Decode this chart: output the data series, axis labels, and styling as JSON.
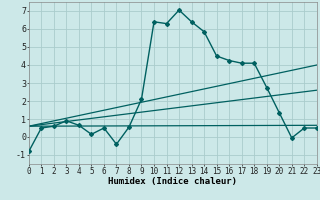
{
  "title": "",
  "xlabel": "Humidex (Indice chaleur)",
  "ylabel": "",
  "background_color": "#cce8e8",
  "grid_color": "#aacccc",
  "line_color": "#006060",
  "xlim": [
    0,
    23
  ],
  "ylim": [
    -1.5,
    7.5
  ],
  "xticks": [
    0,
    1,
    2,
    3,
    4,
    5,
    6,
    7,
    8,
    9,
    10,
    11,
    12,
    13,
    14,
    15,
    16,
    17,
    18,
    19,
    20,
    21,
    22,
    23
  ],
  "yticks": [
    -1,
    0,
    1,
    2,
    3,
    4,
    5,
    6,
    7
  ],
  "curve1_x": [
    0,
    1,
    2,
    3,
    4,
    5,
    6,
    7,
    8,
    9,
    10,
    11,
    12,
    13,
    14,
    15,
    16,
    17,
    18,
    19,
    20,
    21,
    22,
    23
  ],
  "curve1_y": [
    -0.8,
    0.5,
    0.6,
    0.9,
    0.65,
    0.15,
    0.5,
    -0.4,
    0.55,
    2.1,
    6.4,
    6.3,
    7.05,
    6.4,
    5.85,
    4.5,
    4.25,
    4.1,
    4.1,
    2.75,
    1.35,
    -0.05,
    0.5,
    0.5
  ],
  "line2_x": [
    0,
    23
  ],
  "line2_y": [
    0.6,
    4.0
  ],
  "line3_x": [
    0,
    23
  ],
  "line3_y": [
    0.6,
    0.65
  ],
  "line4_x": [
    0,
    23
  ],
  "line4_y": [
    0.6,
    2.6
  ],
  "xlabel_fontsize": 6.5,
  "tick_fontsize": 5.5
}
